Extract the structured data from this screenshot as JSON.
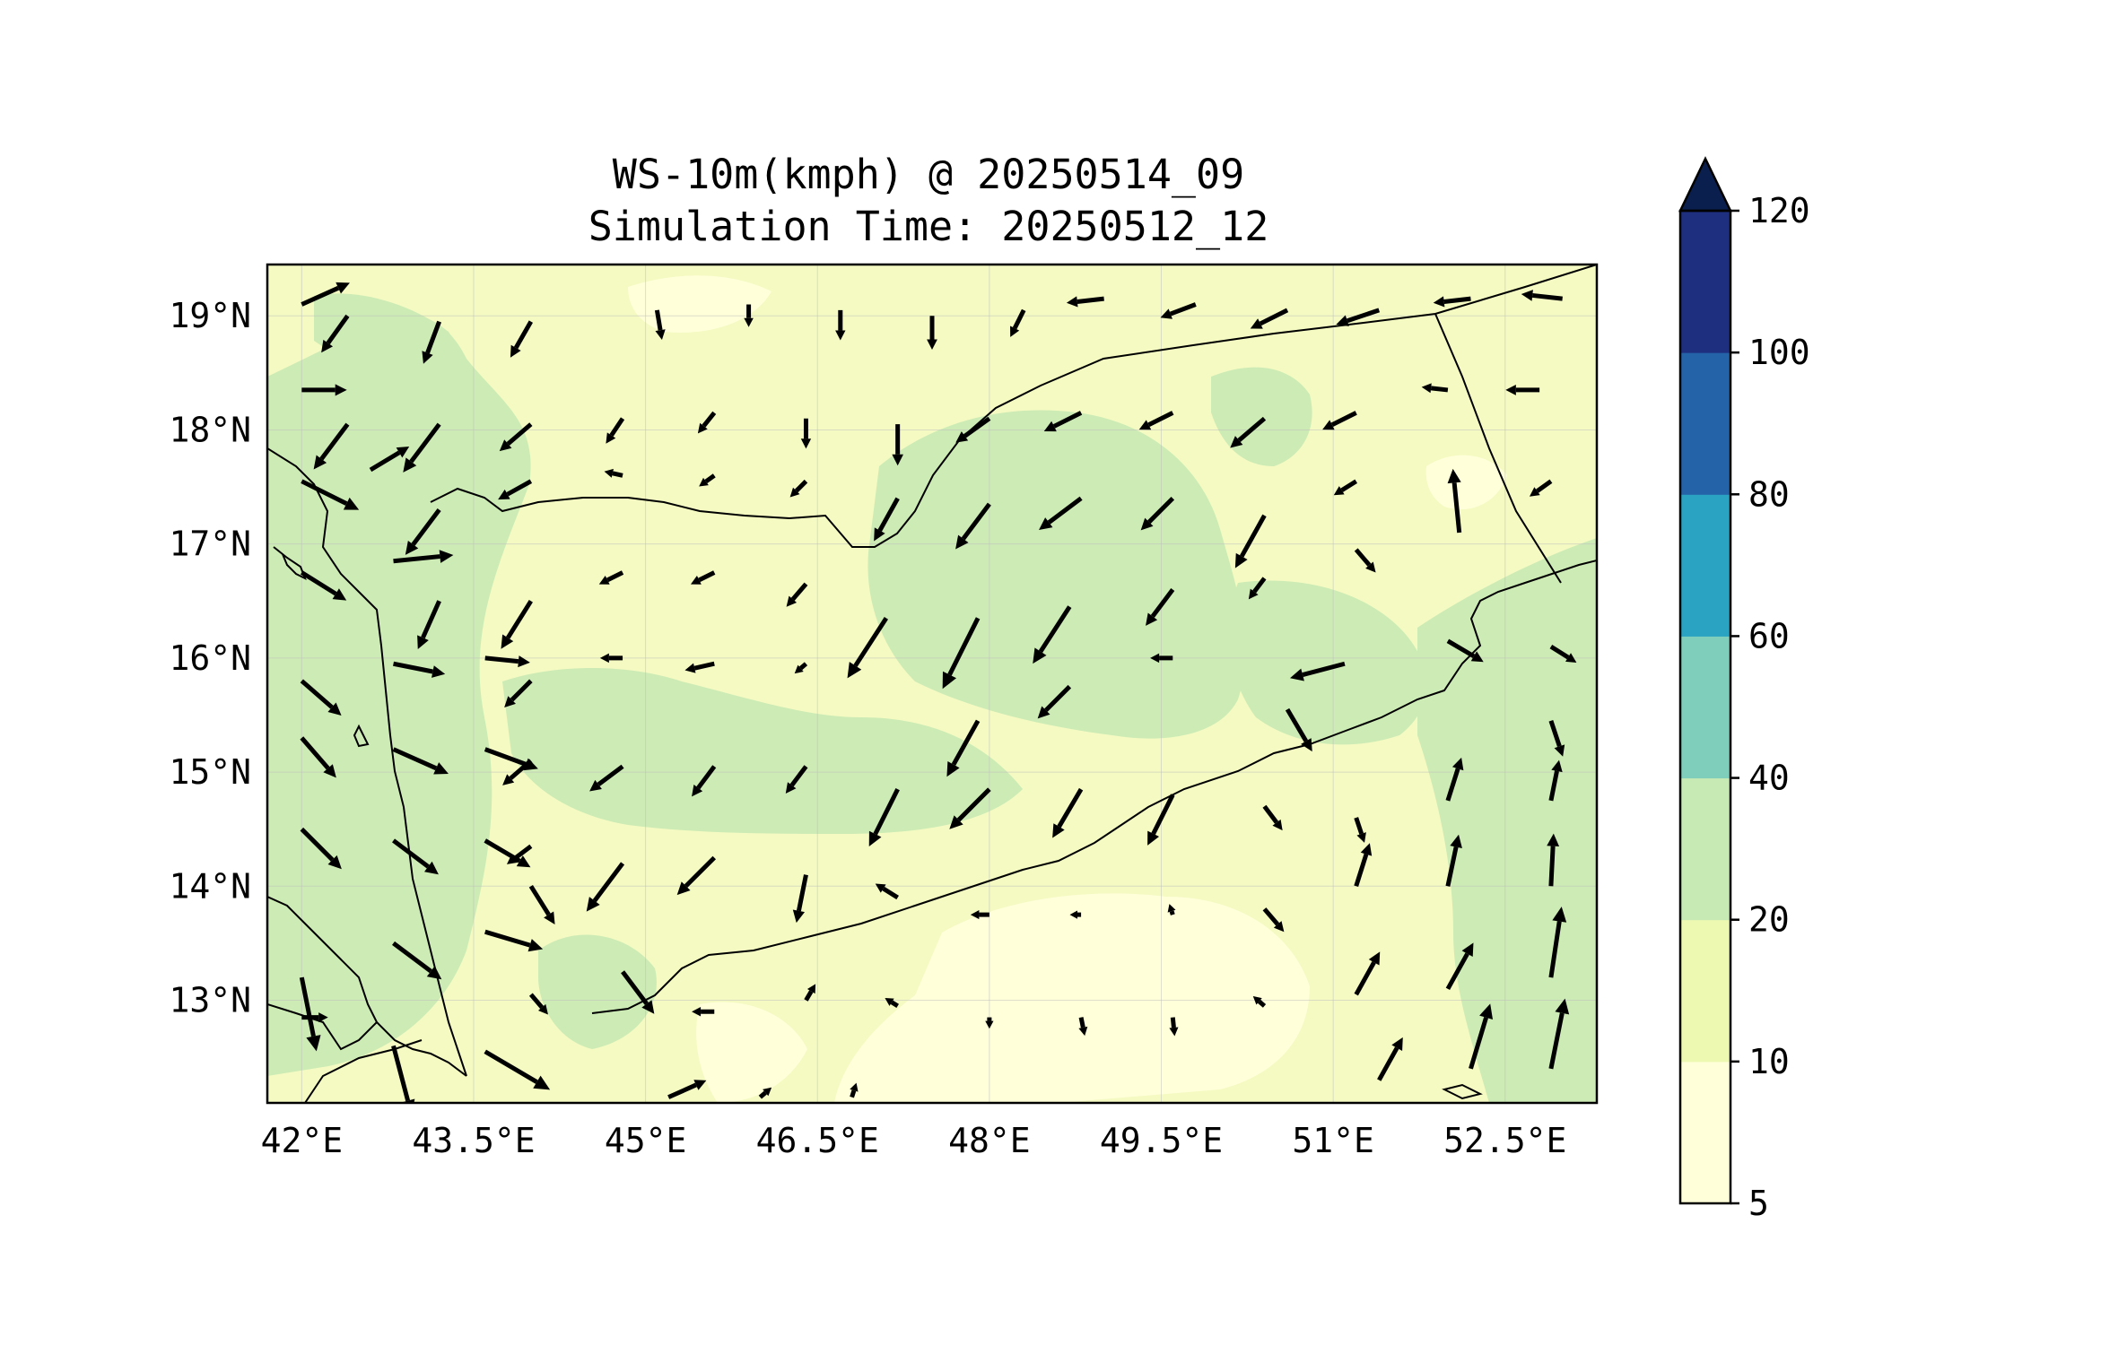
{
  "title": {
    "line1": "WS-10m(kmph) @ 20250514_09",
    "line2": "Simulation Time: 20250512_12"
  },
  "map": {
    "lon_range": [
      41.7,
      53.3
    ],
    "lat_range": [
      12.1,
      19.45
    ],
    "x_ticks": [
      "42°E",
      "43.5°E",
      "45°E",
      "46.5°E",
      "48°E",
      "49.5°E",
      "51°E",
      "52.5°E"
    ],
    "x_tick_values": [
      42,
      43.5,
      45,
      46.5,
      48,
      49.5,
      51,
      52.5
    ],
    "y_ticks": [
      "19°N",
      "18°N",
      "17°N",
      "16°N",
      "15°N",
      "14°N",
      "13°N"
    ],
    "y_tick_values": [
      19,
      18,
      17,
      16,
      15,
      14,
      13
    ],
    "grid": true,
    "land_color": "#f4fac2"
  },
  "colorbar": {
    "labels": [
      "120",
      "100",
      "80",
      "60",
      "40",
      "20",
      "10",
      "5"
    ],
    "levels": [
      5,
      10,
      20,
      40,
      60,
      80,
      100,
      120
    ],
    "colors": [
      "#ffffd9",
      "#edf8b1",
      "#c7e9b4",
      "#7fcdbb",
      "#2aa3c3",
      "#2563a9",
      "#1d2f7e"
    ],
    "extend_color": "#0b1f4f",
    "extend": "max"
  },
  "wind_vectors": [
    {
      "lon": 42.0,
      "lat": 19.1,
      "u": 1.0,
      "v": 0.45,
      "speed": 14
    },
    {
      "lon": 42.4,
      "lat": 19.0,
      "u": -0.5,
      "v": -0.7,
      "speed": 12
    },
    {
      "lon": 43.2,
      "lat": 18.95,
      "u": -0.3,
      "v": -0.8,
      "speed": 12
    },
    {
      "lon": 44.0,
      "lat": 18.95,
      "u": -0.4,
      "v": -0.7,
      "speed": 11
    },
    {
      "lon": 45.1,
      "lat": 19.05,
      "u": 0.1,
      "v": -0.6,
      "speed": 8
    },
    {
      "lon": 45.9,
      "lat": 19.1,
      "u": 0.0,
      "v": -0.4,
      "speed": 6
    },
    {
      "lon": 46.7,
      "lat": 19.05,
      "u": 0.0,
      "v": -0.6,
      "speed": 8
    },
    {
      "lon": 47.5,
      "lat": 19.0,
      "u": 0.0,
      "v": -0.7,
      "speed": 9
    },
    {
      "lon": 48.3,
      "lat": 19.05,
      "u": -0.3,
      "v": -0.6,
      "speed": 8
    },
    {
      "lon": 49.0,
      "lat": 19.15,
      "u": -0.9,
      "v": -0.1,
      "speed": 10
    },
    {
      "lon": 49.8,
      "lat": 19.1,
      "u": -0.8,
      "v": -0.3,
      "speed": 10
    },
    {
      "lon": 50.6,
      "lat": 19.05,
      "u": -0.8,
      "v": -0.4,
      "speed": 11
    },
    {
      "lon": 51.4,
      "lat": 19.05,
      "u": -0.9,
      "v": -0.3,
      "speed": 12
    },
    {
      "lon": 52.2,
      "lat": 19.15,
      "u": -0.9,
      "v": -0.1,
      "speed": 10
    },
    {
      "lon": 53.0,
      "lat": 19.15,
      "u": -0.9,
      "v": 0.1,
      "speed": 11
    },
    {
      "lon": 42.0,
      "lat": 18.35,
      "u": 1.0,
      "v": 0.0,
      "speed": 12
    },
    {
      "lon": 42.4,
      "lat": 18.05,
      "u": -0.6,
      "v": -0.8,
      "speed": 15
    },
    {
      "lon": 43.2,
      "lat": 18.05,
      "u": -0.6,
      "v": -0.8,
      "speed": 16
    },
    {
      "lon": 44.0,
      "lat": 18.05,
      "u": -0.7,
      "v": -0.6,
      "speed": 11
    },
    {
      "lon": 44.8,
      "lat": 18.1,
      "u": -0.4,
      "v": -0.6,
      "speed": 8
    },
    {
      "lon": 45.6,
      "lat": 18.15,
      "u": -0.4,
      "v": -0.5,
      "speed": 7
    },
    {
      "lon": 46.4,
      "lat": 18.1,
      "u": 0.0,
      "v": -0.6,
      "speed": 8
    },
    {
      "lon": 47.2,
      "lat": 18.05,
      "u": 0.0,
      "v": -0.8,
      "speed": 11
    },
    {
      "lon": 48.0,
      "lat": 18.1,
      "u": -0.7,
      "v": -0.5,
      "speed": 11
    },
    {
      "lon": 48.8,
      "lat": 18.15,
      "u": -0.8,
      "v": -0.4,
      "speed": 11
    },
    {
      "lon": 49.6,
      "lat": 18.15,
      "u": -0.8,
      "v": -0.4,
      "speed": 10
    },
    {
      "lon": 50.4,
      "lat": 18.1,
      "u": -0.7,
      "v": -0.6,
      "speed": 12
    },
    {
      "lon": 51.2,
      "lat": 18.15,
      "u": -0.8,
      "v": -0.4,
      "speed": 10
    },
    {
      "lon": 52.0,
      "lat": 18.35,
      "u": -0.9,
      "v": 0.1,
      "speed": 7
    },
    {
      "lon": 52.8,
      "lat": 18.35,
      "u": -1.0,
      "v": 0.0,
      "speed": 9
    },
    {
      "lon": 42.0,
      "lat": 17.55,
      "u": 0.9,
      "v": -0.45,
      "speed": 17
    },
    {
      "lon": 42.6,
      "lat": 17.65,
      "u": 0.5,
      "v": 0.3,
      "speed": 12
    },
    {
      "lon": 43.2,
      "lat": 17.3,
      "u": -0.6,
      "v": -0.8,
      "speed": 15
    },
    {
      "lon": 44.0,
      "lat": 17.55,
      "u": -0.9,
      "v": -0.5,
      "speed": 10
    },
    {
      "lon": 44.8,
      "lat": 17.6,
      "u": -0.9,
      "v": 0.2,
      "speed": 5
    },
    {
      "lon": 45.6,
      "lat": 17.6,
      "u": -0.7,
      "v": -0.5,
      "speed": 5
    },
    {
      "lon": 46.4,
      "lat": 17.55,
      "u": -0.6,
      "v": -0.6,
      "speed": 6
    },
    {
      "lon": 47.2,
      "lat": 17.4,
      "u": -0.5,
      "v": -0.9,
      "speed": 13
    },
    {
      "lon": 48.0,
      "lat": 17.35,
      "u": -0.6,
      "v": -0.8,
      "speed": 15
    },
    {
      "lon": 48.8,
      "lat": 17.4,
      "u": -0.8,
      "v": -0.6,
      "speed": 14
    },
    {
      "lon": 49.6,
      "lat": 17.4,
      "u": -0.7,
      "v": -0.7,
      "speed": 12
    },
    {
      "lon": 50.4,
      "lat": 17.25,
      "u": -0.5,
      "v": -0.9,
      "speed": 16
    },
    {
      "lon": 51.2,
      "lat": 17.55,
      "u": -0.8,
      "v": -0.5,
      "speed": 7
    },
    {
      "lon": 52.1,
      "lat": 17.1,
      "u": -0.1,
      "v": 1.0,
      "speed": 17
    },
    {
      "lon": 52.9,
      "lat": 17.55,
      "u": -0.7,
      "v": -0.5,
      "speed": 7
    },
    {
      "lon": 42.0,
      "lat": 16.75,
      "u": 0.8,
      "v": -0.5,
      "speed": 14
    },
    {
      "lon": 42.8,
      "lat": 16.85,
      "u": 1.0,
      "v": 0.1,
      "speed": 16
    },
    {
      "lon": 43.2,
      "lat": 16.5,
      "u": -0.4,
      "v": -0.9,
      "speed": 14
    },
    {
      "lon": 44.0,
      "lat": 16.5,
      "u": -0.5,
      "v": -0.8,
      "speed": 15
    },
    {
      "lon": 44.8,
      "lat": 16.75,
      "u": -0.8,
      "v": -0.4,
      "speed": 7
    },
    {
      "lon": 45.6,
      "lat": 16.75,
      "u": -0.8,
      "v": -0.4,
      "speed": 7
    },
    {
      "lon": 46.4,
      "lat": 16.65,
      "u": -0.6,
      "v": -0.7,
      "speed": 8
    },
    {
      "lon": 47.1,
      "lat": 16.35,
      "u": -0.55,
      "v": -0.85,
      "speed": 19
    },
    {
      "lon": 47.9,
      "lat": 16.35,
      "u": -0.45,
      "v": -0.9,
      "speed": 21
    },
    {
      "lon": 48.7,
      "lat": 16.45,
      "u": -0.55,
      "v": -0.85,
      "speed": 18
    },
    {
      "lon": 49.6,
      "lat": 16.6,
      "u": -0.6,
      "v": -0.8,
      "speed": 12
    },
    {
      "lon": 50.4,
      "lat": 16.7,
      "u": -0.6,
      "v": -0.8,
      "speed": 7
    },
    {
      "lon": 51.2,
      "lat": 16.95,
      "u": 0.6,
      "v": -0.7,
      "speed": 8
    },
    {
      "lon": 52.0,
      "lat": 16.15,
      "u": 0.85,
      "v": -0.5,
      "speed": 11
    },
    {
      "lon": 52.9,
      "lat": 16.1,
      "u": 0.8,
      "v": -0.5,
      "speed": 8
    },
    {
      "lon": 42.0,
      "lat": 15.8,
      "u": 0.8,
      "v": -0.7,
      "speed": 14
    },
    {
      "lon": 42.8,
      "lat": 15.95,
      "u": 1.0,
      "v": -0.2,
      "speed": 14
    },
    {
      "lon": 43.6,
      "lat": 16.0,
      "u": 1.0,
      "v": -0.1,
      "speed": 12
    },
    {
      "lon": 44.0,
      "lat": 15.8,
      "u": -0.7,
      "v": -0.7,
      "speed": 10
    },
    {
      "lon": 44.8,
      "lat": 16.0,
      "u": -1.0,
      "v": 0.0,
      "speed": 6
    },
    {
      "lon": 45.6,
      "lat": 15.95,
      "u": -0.9,
      "v": -0.2,
      "speed": 8
    },
    {
      "lon": 46.4,
      "lat": 15.95,
      "u": -0.7,
      "v": -0.6,
      "speed": 4
    },
    {
      "lon": 47.9,
      "lat": 15.45,
      "u": -0.5,
      "v": -0.9,
      "speed": 17
    },
    {
      "lon": 48.7,
      "lat": 15.75,
      "u": -0.7,
      "v": -0.7,
      "speed": 12
    },
    {
      "lon": 49.6,
      "lat": 16.0,
      "u": -1.0,
      "v": 0.0,
      "speed": 6
    },
    {
      "lon": 50.6,
      "lat": 15.55,
      "u": 0.5,
      "v": -0.85,
      "speed": 13
    },
    {
      "lon": 51.1,
      "lat": 15.95,
      "u": -0.95,
      "v": -0.25,
      "speed": 15
    },
    {
      "lon": 52.9,
      "lat": 15.45,
      "u": 0.3,
      "v": -0.9,
      "speed": 10
    },
    {
      "lon": 42.0,
      "lat": 15.3,
      "u": 0.65,
      "v": -0.75,
      "speed": 14
    },
    {
      "lon": 42.8,
      "lat": 15.2,
      "u": 0.9,
      "v": -0.4,
      "speed": 16
    },
    {
      "lon": 43.6,
      "lat": 15.2,
      "u": 0.95,
      "v": -0.35,
      "speed": 15
    },
    {
      "lon": 44.0,
      "lat": 15.1,
      "u": -0.75,
      "v": -0.65,
      "speed": 10
    },
    {
      "lon": 44.8,
      "lat": 15.05,
      "u": -0.8,
      "v": -0.6,
      "speed": 11
    },
    {
      "lon": 45.6,
      "lat": 15.05,
      "u": -0.6,
      "v": -0.8,
      "speed": 10
    },
    {
      "lon": 46.4,
      "lat": 15.05,
      "u": -0.6,
      "v": -0.8,
      "speed": 9
    },
    {
      "lon": 47.2,
      "lat": 14.85,
      "u": -0.45,
      "v": -0.9,
      "speed": 17
    },
    {
      "lon": 48.0,
      "lat": 14.85,
      "u": -0.7,
      "v": -0.7,
      "speed": 15
    },
    {
      "lon": 48.8,
      "lat": 14.85,
      "u": -0.5,
      "v": -0.85,
      "speed": 15
    },
    {
      "lon": 49.6,
      "lat": 14.8,
      "u": -0.45,
      "v": -0.9,
      "speed": 15
    },
    {
      "lon": 50.4,
      "lat": 14.7,
      "u": 0.6,
      "v": -0.8,
      "speed": 8
    },
    {
      "lon": 51.2,
      "lat": 14.6,
      "u": 0.3,
      "v": -0.9,
      "speed": 7
    },
    {
      "lon": 52.0,
      "lat": 14.75,
      "u": 0.3,
      "v": 0.95,
      "speed": 12
    },
    {
      "lon": 52.9,
      "lat": 14.75,
      "u": 0.2,
      "v": 1.0,
      "speed": 11
    },
    {
      "lon": 42.0,
      "lat": 14.5,
      "u": 0.7,
      "v": -0.7,
      "speed": 15
    },
    {
      "lon": 42.8,
      "lat": 14.4,
      "u": 0.8,
      "v": -0.6,
      "speed": 15
    },
    {
      "lon": 43.6,
      "lat": 14.4,
      "u": 0.85,
      "v": -0.5,
      "speed": 14
    },
    {
      "lon": 44.0,
      "lat": 14.35,
      "u": -0.8,
      "v": -0.6,
      "speed": 8
    },
    {
      "lon": 44.8,
      "lat": 14.2,
      "u": -0.6,
      "v": -0.8,
      "speed": 16
    },
    {
      "lon": 45.6,
      "lat": 14.25,
      "u": -0.7,
      "v": -0.7,
      "speed": 14
    },
    {
      "lon": 46.4,
      "lat": 14.1,
      "u": -0.2,
      "v": -1.0,
      "speed": 13
    },
    {
      "lon": 47.2,
      "lat": 13.9,
      "u": -0.8,
      "v": 0.5,
      "speed": 7
    },
    {
      "lon": 48.0,
      "lat": 13.75,
      "u": -1.0,
      "v": 0.0,
      "speed": 5
    },
    {
      "lon": 48.8,
      "lat": 13.75,
      "u": -1.0,
      "v": 0.0,
      "speed": 3
    },
    {
      "lon": 49.6,
      "lat": 13.75,
      "u": -0.3,
      "v": 0.95,
      "speed": 3
    },
    {
      "lon": 50.4,
      "lat": 13.8,
      "u": 0.6,
      "v": -0.7,
      "speed": 8
    },
    {
      "lon": 51.2,
      "lat": 14.0,
      "u": 0.3,
      "v": 0.95,
      "speed": 12
    },
    {
      "lon": 52.0,
      "lat": 14.0,
      "u": 0.2,
      "v": 0.95,
      "speed": 14
    },
    {
      "lon": 52.9,
      "lat": 14.0,
      "u": 0.05,
      "v": 1.0,
      "speed": 14
    },
    {
      "lon": 42.0,
      "lat": 13.2,
      "u": 0.2,
      "v": -1.0,
      "speed": 20
    },
    {
      "lon": 42.8,
      "lat": 13.5,
      "u": 0.8,
      "v": -0.6,
      "speed": 16
    },
    {
      "lon": 43.6,
      "lat": 13.6,
      "u": 1.0,
      "v": -0.3,
      "speed": 16
    },
    {
      "lon": 44.0,
      "lat": 14.0,
      "u": 0.5,
      "v": -0.8,
      "speed": 12
    },
    {
      "lon": 44.0,
      "lat": 13.05,
      "u": 0.6,
      "v": -0.7,
      "speed": 7
    },
    {
      "lon": 44.8,
      "lat": 13.25,
      "u": 0.6,
      "v": -0.8,
      "speed": 14
    },
    {
      "lon": 45.6,
      "lat": 12.9,
      "u": -1.0,
      "v": 0.0,
      "speed": 6
    },
    {
      "lon": 46.4,
      "lat": 13.0,
      "u": 0.5,
      "v": 0.85,
      "speed": 5
    },
    {
      "lon": 47.2,
      "lat": 12.95,
      "u": -0.8,
      "v": 0.5,
      "speed": 4
    },
    {
      "lon": 48.0,
      "lat": 12.85,
      "u": 0.0,
      "v": -1.0,
      "speed": 3
    },
    {
      "lon": 48.8,
      "lat": 12.85,
      "u": 0.2,
      "v": -1.0,
      "speed": 5
    },
    {
      "lon": 49.6,
      "lat": 12.85,
      "u": 0.1,
      "v": -1.0,
      "speed": 5
    },
    {
      "lon": 50.4,
      "lat": 12.95,
      "u": -0.7,
      "v": 0.6,
      "speed": 4
    },
    {
      "lon": 51.2,
      "lat": 13.05,
      "u": 0.5,
      "v": 0.9,
      "speed": 13
    },
    {
      "lon": 52.0,
      "lat": 13.1,
      "u": 0.5,
      "v": 0.9,
      "speed": 14
    },
    {
      "lon": 52.9,
      "lat": 13.2,
      "u": 0.15,
      "v": 1.0,
      "speed": 19
    },
    {
      "lon": 42.0,
      "lat": 12.85,
      "u": 1.0,
      "v": 0.0,
      "speed": 7
    },
    {
      "lon": 42.8,
      "lat": 12.6,
      "u": 0.25,
      "v": -0.95,
      "speed": 19
    },
    {
      "lon": 43.6,
      "lat": 12.55,
      "u": 0.85,
      "v": -0.5,
      "speed": 20
    },
    {
      "lon": 45.2,
      "lat": 12.15,
      "u": 0.9,
      "v": 0.4,
      "speed": 11
    },
    {
      "lon": 46.0,
      "lat": 12.15,
      "u": 0.7,
      "v": 0.6,
      "speed": 4
    },
    {
      "lon": 46.8,
      "lat": 12.15,
      "u": 0.3,
      "v": 0.95,
      "speed": 4
    },
    {
      "lon": 51.4,
      "lat": 12.3,
      "u": 0.5,
      "v": 0.9,
      "speed": 13
    },
    {
      "lon": 52.2,
      "lat": 12.4,
      "u": 0.3,
      "v": 1.0,
      "speed": 18
    },
    {
      "lon": 52.9,
      "lat": 12.4,
      "u": 0.2,
      "v": 1.0,
      "speed": 19
    }
  ]
}
